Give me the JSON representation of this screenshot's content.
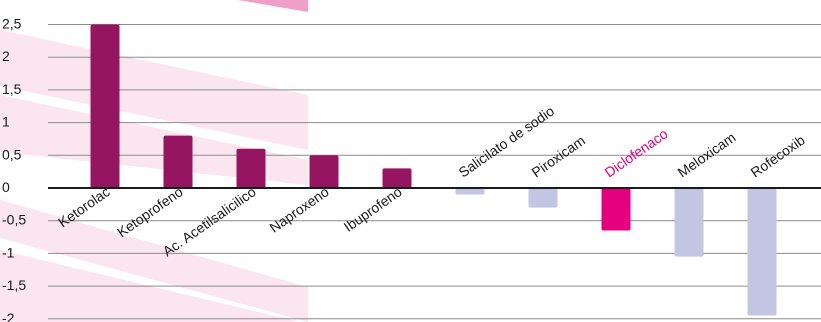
{
  "chart_data": {
    "type": "bar",
    "title": "",
    "xlabel": "",
    "ylabel": "",
    "ylim": [
      -2,
      2.5
    ],
    "y_ticks": [
      "2,5",
      "2",
      "1,5",
      "1",
      "0,5",
      "0",
      "-0,5",
      "-1",
      "-1,5",
      "-2"
    ],
    "grid": "horizontal",
    "categories": [
      "Ketorolac",
      "Ketoprofeno",
      "Ac. Acetilsalicilico",
      "Naproxeno",
      "Ibuprofeno",
      "Salicilato de sodio",
      "Piroxicam",
      "Diclofenaco",
      "Meloxicam",
      "Rofecoxib"
    ],
    "values": [
      2.5,
      0.8,
      0.6,
      0.5,
      0.3,
      -0.1,
      -0.3,
      -0.65,
      -1.05,
      -1.95
    ],
    "highlight": "Diclofenaco",
    "colors": {
      "positive": "#951561",
      "negative": "#c3c6e2",
      "highlight": "#e5007e",
      "highlight_label": "#e5007e",
      "gridline": "#8c8c8c",
      "zero_line": "#1a1a1a",
      "band": "#fbe6ef",
      "corner": "#f0a0c8"
    }
  }
}
